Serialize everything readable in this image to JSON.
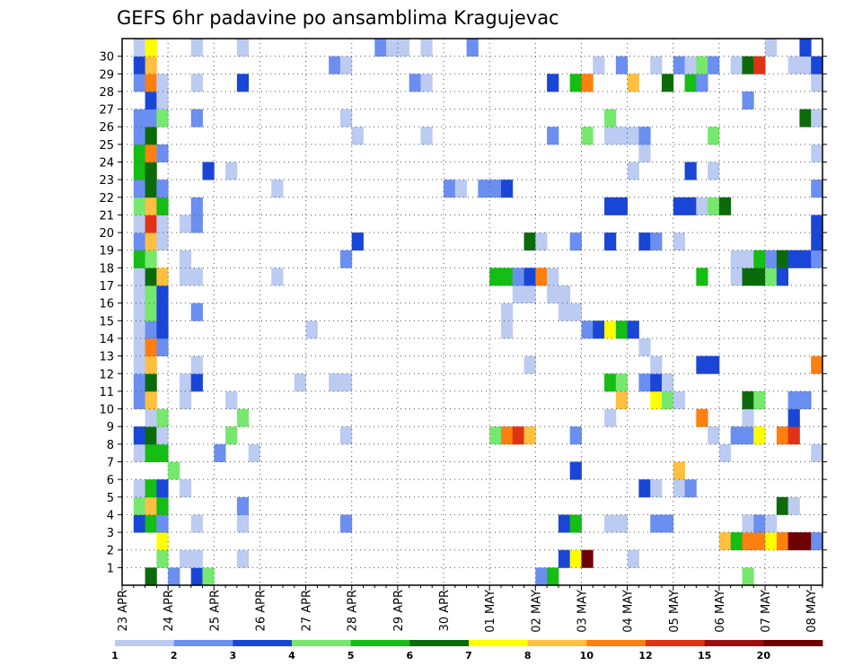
{
  "chart_data": {
    "type": "heatmap",
    "title": "GEFS 6hr padavine po ansamblima Kragujevac",
    "y_ticks": [
      "1",
      "2",
      "3",
      "4",
      "5",
      "6",
      "7",
      "8",
      "9",
      "10",
      "11",
      "12",
      "13",
      "14",
      "15",
      "16",
      "17",
      "18",
      "19",
      "20",
      "21",
      "22",
      "23",
      "24",
      "25",
      "26",
      "27",
      "28",
      "29",
      "30"
    ],
    "x_ticks": [
      "23 APR",
      "24 APR",
      "25 APR",
      "26 APR",
      "27 APR",
      "28 APR",
      "29 APR",
      "30 APR",
      "01 MAY",
      "02 MAY",
      "03 MAY",
      "04 MAY",
      "05 MAY",
      "06 MAY",
      "07 MAY",
      "08 MAY"
    ],
    "time_steps_per_day": 4,
    "n_steps": 61,
    "n_members": 31,
    "legend_levels": [
      "1",
      "2",
      "3",
      "4",
      "5",
      "6",
      "7",
      "8",
      "10",
      "12",
      "15",
      "20"
    ],
    "colors": [
      "#bccbf2",
      "#6b8ff0",
      "#1946d6",
      "#77e86e",
      "#15bd15",
      "#0b6b0b",
      "#ffff00",
      "#ffbf40",
      "#ff7f0f",
      "#e03315",
      "#9b0f0f",
      "#6e0000"
    ],
    "grid": true,
    "cells": [
      [
        2,
        0,
        6
      ],
      [
        4,
        0,
        2
      ],
      [
        6,
        0,
        3
      ],
      [
        7,
        0,
        4
      ],
      [
        36,
        0,
        2
      ],
      [
        37,
        0,
        5
      ],
      [
        54,
        0,
        4
      ],
      [
        3,
        1,
        4
      ],
      [
        5,
        1,
        1
      ],
      [
        6,
        1,
        1
      ],
      [
        10,
        1,
        1
      ],
      [
        38,
        1,
        3
      ],
      [
        39,
        1,
        7
      ],
      [
        40,
        1,
        12
      ],
      [
        44,
        1,
        1
      ],
      [
        3,
        2,
        7
      ],
      [
        52,
        2,
        8
      ],
      [
        53,
        2,
        5
      ],
      [
        54,
        2,
        9
      ],
      [
        55,
        2,
        9
      ],
      [
        56,
        2,
        7
      ],
      [
        57,
        2,
        9
      ],
      [
        58,
        2,
        12
      ],
      [
        59,
        2,
        12
      ],
      [
        60,
        2,
        2
      ],
      [
        1,
        3,
        3
      ],
      [
        2,
        3,
        5
      ],
      [
        3,
        3,
        2
      ],
      [
        6,
        3,
        1
      ],
      [
        10,
        3,
        1
      ],
      [
        19,
        3,
        2
      ],
      [
        38,
        3,
        3
      ],
      [
        39,
        3,
        5
      ],
      [
        42,
        3,
        1
      ],
      [
        43,
        3,
        1
      ],
      [
        46,
        3,
        2
      ],
      [
        47,
        3,
        2
      ],
      [
        54,
        3,
        1
      ],
      [
        55,
        3,
        2
      ],
      [
        56,
        3,
        1
      ],
      [
        1,
        4,
        4
      ],
      [
        2,
        4,
        8
      ],
      [
        3,
        4,
        5
      ],
      [
        10,
        4,
        2
      ],
      [
        57,
        4,
        6
      ],
      [
        58,
        4,
        1
      ],
      [
        1,
        5,
        1
      ],
      [
        2,
        5,
        5
      ],
      [
        3,
        5,
        3
      ],
      [
        5,
        5,
        1
      ],
      [
        45,
        5,
        3
      ],
      [
        46,
        5,
        1
      ],
      [
        48,
        5,
        1
      ],
      [
        49,
        5,
        2
      ],
      [
        4,
        6,
        4
      ],
      [
        39,
        6,
        3
      ],
      [
        48,
        6,
        8
      ],
      [
        1,
        7,
        1
      ],
      [
        2,
        7,
        5
      ],
      [
        3,
        7,
        5
      ],
      [
        8,
        7,
        2
      ],
      [
        11,
        7,
        1
      ],
      [
        52,
        7,
        1
      ],
      [
        60,
        7,
        1
      ],
      [
        1,
        8,
        3
      ],
      [
        2,
        8,
        6
      ],
      [
        3,
        8,
        1
      ],
      [
        9,
        8,
        4
      ],
      [
        19,
        8,
        1
      ],
      [
        32,
        8,
        4
      ],
      [
        33,
        8,
        9
      ],
      [
        34,
        8,
        10
      ],
      [
        35,
        8,
        8
      ],
      [
        39,
        8,
        2
      ],
      [
        51,
        8,
        1
      ],
      [
        53,
        8,
        2
      ],
      [
        54,
        8,
        2
      ],
      [
        55,
        8,
        7
      ],
      [
        57,
        8,
        9
      ],
      [
        58,
        8,
        10
      ],
      [
        2,
        9,
        1
      ],
      [
        3,
        9,
        4
      ],
      [
        10,
        9,
        4
      ],
      [
        42,
        9,
        1
      ],
      [
        50,
        9,
        9
      ],
      [
        54,
        9,
        1
      ],
      [
        58,
        9,
        3
      ],
      [
        1,
        10,
        2
      ],
      [
        2,
        10,
        8
      ],
      [
        5,
        10,
        1
      ],
      [
        9,
        10,
        1
      ],
      [
        43,
        10,
        8
      ],
      [
        46,
        10,
        7
      ],
      [
        47,
        10,
        4
      ],
      [
        48,
        10,
        1
      ],
      [
        54,
        10,
        6
      ],
      [
        55,
        10,
        4
      ],
      [
        58,
        10,
        2
      ],
      [
        59,
        10,
        2
      ],
      [
        1,
        11,
        2
      ],
      [
        2,
        11,
        6
      ],
      [
        5,
        11,
        1
      ],
      [
        6,
        11,
        3
      ],
      [
        15,
        11,
        1
      ],
      [
        18,
        11,
        1
      ],
      [
        19,
        11,
        1
      ],
      [
        42,
        11,
        5
      ],
      [
        43,
        11,
        4
      ],
      [
        45,
        11,
        2
      ],
      [
        46,
        11,
        3
      ],
      [
        47,
        11,
        1
      ],
      [
        1,
        12,
        1
      ],
      [
        2,
        12,
        8
      ],
      [
        6,
        12,
        1
      ],
      [
        35,
        12,
        1
      ],
      [
        46,
        12,
        1
      ],
      [
        50,
        12,
        3
      ],
      [
        51,
        12,
        3
      ],
      [
        60,
        12,
        9
      ],
      [
        1,
        13,
        1
      ],
      [
        2,
        13,
        9
      ],
      [
        3,
        13,
        2
      ],
      [
        45,
        13,
        1
      ],
      [
        1,
        14,
        1
      ],
      [
        2,
        14,
        2
      ],
      [
        3,
        14,
        3
      ],
      [
        16,
        14,
        1
      ],
      [
        33,
        14,
        1
      ],
      [
        40,
        14,
        2
      ],
      [
        41,
        14,
        3
      ],
      [
        42,
        14,
        7
      ],
      [
        43,
        14,
        5
      ],
      [
        44,
        14,
        3
      ],
      [
        1,
        15,
        1
      ],
      [
        2,
        15,
        4
      ],
      [
        3,
        15,
        3
      ],
      [
        6,
        15,
        2
      ],
      [
        33,
        15,
        1
      ],
      [
        38,
        15,
        1
      ],
      [
        39,
        15,
        1
      ],
      [
        1,
        16,
        1
      ],
      [
        2,
        16,
        4
      ],
      [
        3,
        16,
        3
      ],
      [
        34,
        16,
        1
      ],
      [
        35,
        16,
        1
      ],
      [
        37,
        16,
        1
      ],
      [
        38,
        16,
        1
      ],
      [
        1,
        17,
        1
      ],
      [
        2,
        17,
        6
      ],
      [
        3,
        17,
        8
      ],
      [
        5,
        17,
        1
      ],
      [
        6,
        17,
        1
      ],
      [
        13,
        17,
        1
      ],
      [
        32,
        17,
        5
      ],
      [
        33,
        17,
        5
      ],
      [
        34,
        17,
        2
      ],
      [
        35,
        17,
        3
      ],
      [
        36,
        17,
        9
      ],
      [
        37,
        17,
        1
      ],
      [
        50,
        17,
        5
      ],
      [
        53,
        17,
        1
      ],
      [
        54,
        17,
        6
      ],
      [
        55,
        17,
        6
      ],
      [
        56,
        17,
        4
      ],
      [
        57,
        17,
        3
      ],
      [
        1,
        18,
        5
      ],
      [
        2,
        18,
        4
      ],
      [
        5,
        18,
        1
      ],
      [
        19,
        18,
        2
      ],
      [
        53,
        18,
        1
      ],
      [
        54,
        18,
        1
      ],
      [
        55,
        18,
        5
      ],
      [
        56,
        18,
        2
      ],
      [
        57,
        18,
        6
      ],
      [
        58,
        18,
        3
      ],
      [
        59,
        18,
        3
      ],
      [
        60,
        18,
        2
      ],
      [
        1,
        19,
        2
      ],
      [
        2,
        19,
        8
      ],
      [
        3,
        19,
        1
      ],
      [
        20,
        19,
        3
      ],
      [
        35,
        19,
        6
      ],
      [
        36,
        19,
        1
      ],
      [
        39,
        19,
        2
      ],
      [
        42,
        19,
        3
      ],
      [
        45,
        19,
        3
      ],
      [
        46,
        19,
        2
      ],
      [
        48,
        19,
        1
      ],
      [
        60,
        19,
        3
      ],
      [
        1,
        20,
        1
      ],
      [
        2,
        20,
        10
      ],
      [
        3,
        20,
        1
      ],
      [
        5,
        20,
        1
      ],
      [
        6,
        20,
        2
      ],
      [
        60,
        20,
        3
      ],
      [
        1,
        21,
        4
      ],
      [
        2,
        21,
        8
      ],
      [
        3,
        21,
        5
      ],
      [
        6,
        21,
        2
      ],
      [
        42,
        21,
        3
      ],
      [
        43,
        21,
        3
      ],
      [
        48,
        21,
        3
      ],
      [
        49,
        21,
        3
      ],
      [
        50,
        21,
        1
      ],
      [
        51,
        21,
        4
      ],
      [
        52,
        21,
        6
      ],
      [
        1,
        22,
        2
      ],
      [
        2,
        22,
        6
      ],
      [
        3,
        22,
        2
      ],
      [
        13,
        22,
        1
      ],
      [
        28,
        22,
        2
      ],
      [
        29,
        22,
        1
      ],
      [
        31,
        22,
        2
      ],
      [
        32,
        22,
        2
      ],
      [
        33,
        22,
        3
      ],
      [
        60,
        22,
        2
      ],
      [
        1,
        23,
        5
      ],
      [
        2,
        23,
        6
      ],
      [
        7,
        23,
        3
      ],
      [
        9,
        23,
        1
      ],
      [
        44,
        23,
        1
      ],
      [
        49,
        23,
        3
      ],
      [
        51,
        23,
        1
      ],
      [
        1,
        24,
        5
      ],
      [
        2,
        24,
        9
      ],
      [
        3,
        24,
        2
      ],
      [
        45,
        24,
        1
      ],
      [
        60,
        24,
        1
      ],
      [
        1,
        25,
        2
      ],
      [
        2,
        25,
        6
      ],
      [
        20,
        25,
        1
      ],
      [
        26,
        25,
        1
      ],
      [
        37,
        25,
        2
      ],
      [
        40,
        25,
        4
      ],
      [
        42,
        25,
        1
      ],
      [
        43,
        25,
        1
      ],
      [
        44,
        25,
        1
      ],
      [
        45,
        25,
        2
      ],
      [
        51,
        25,
        4
      ],
      [
        1,
        26,
        2
      ],
      [
        2,
        26,
        2
      ],
      [
        3,
        26,
        4
      ],
      [
        6,
        26,
        2
      ],
      [
        19,
        26,
        1
      ],
      [
        42,
        26,
        4
      ],
      [
        59,
        26,
        6
      ],
      [
        60,
        26,
        1
      ],
      [
        2,
        27,
        3
      ],
      [
        3,
        27,
        1
      ],
      [
        54,
        27,
        2
      ],
      [
        1,
        28,
        2
      ],
      [
        2,
        28,
        9
      ],
      [
        3,
        28,
        1
      ],
      [
        6,
        28,
        1
      ],
      [
        10,
        28,
        3
      ],
      [
        25,
        28,
        2
      ],
      [
        26,
        28,
        1
      ],
      [
        37,
        28,
        3
      ],
      [
        39,
        28,
        5
      ],
      [
        40,
        28,
        9
      ],
      [
        44,
        28,
        8
      ],
      [
        47,
        28,
        6
      ],
      [
        49,
        28,
        5
      ],
      [
        50,
        28,
        2
      ],
      [
        60,
        28,
        1
      ],
      [
        1,
        29,
        3
      ],
      [
        2,
        29,
        8
      ],
      [
        18,
        29,
        2
      ],
      [
        19,
        29,
        1
      ],
      [
        41,
        29,
        1
      ],
      [
        43,
        29,
        2
      ],
      [
        46,
        29,
        1
      ],
      [
        48,
        29,
        2
      ],
      [
        49,
        29,
        1
      ],
      [
        50,
        29,
        4
      ],
      [
        51,
        29,
        2
      ],
      [
        53,
        29,
        1
      ],
      [
        54,
        29,
        6
      ],
      [
        55,
        29,
        10
      ],
      [
        58,
        29,
        1
      ],
      [
        59,
        29,
        1
      ],
      [
        60,
        29,
        3
      ],
      [
        1,
        30,
        1
      ],
      [
        2,
        30,
        7
      ],
      [
        6,
        30,
        1
      ],
      [
        10,
        30,
        1
      ],
      [
        22,
        30,
        2
      ],
      [
        23,
        30,
        1
      ],
      [
        24,
        30,
        1
      ],
      [
        26,
        30,
        1
      ],
      [
        30,
        30,
        2
      ],
      [
        56,
        30,
        1
      ],
      [
        59,
        30,
        3
      ]
    ]
  }
}
